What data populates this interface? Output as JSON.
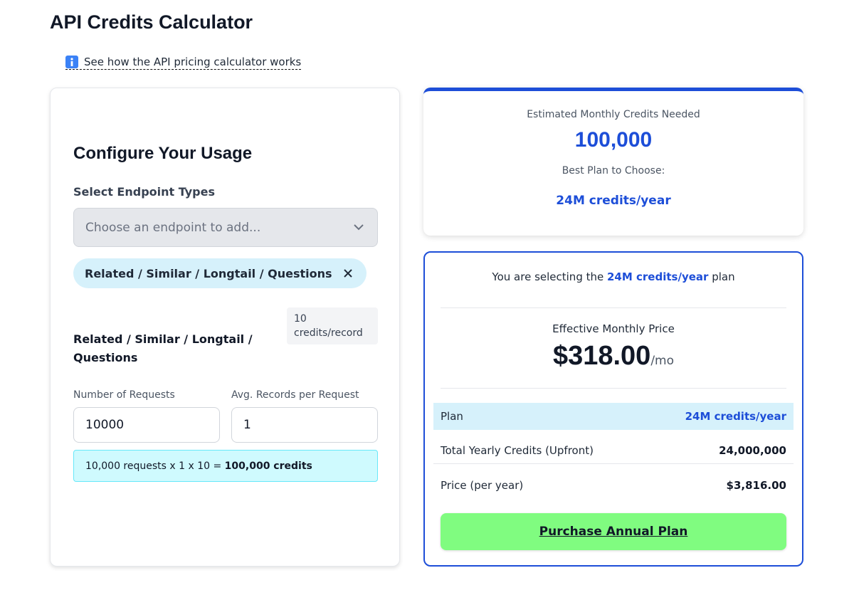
{
  "header": {
    "title": "API Credits Calculator",
    "help_link": "See how the API pricing calculator works"
  },
  "configure": {
    "title": "Configure Your Usage",
    "select_label": "Select Endpoint Types",
    "select_placeholder": "Choose an endpoint to add...",
    "chip": "Related / Similar / Longtail / Questions",
    "endpoint": {
      "name": "Related / Similar / Longtail / Questions",
      "badge_number": "10",
      "badge_unit": "credits/record",
      "requests_label": "Number of Requests",
      "records_label": "Avg. Records per Request",
      "requests_value": "10000",
      "records_value": "1",
      "formula": "10,000 requests x 1 x 10 = ",
      "formula_result": "100,000 credits"
    }
  },
  "estimate": {
    "label": "Estimated Monthly Credits Needed",
    "value": "100,000",
    "plan_label": "Best Plan to Choose:",
    "plan": "24M credits/year"
  },
  "summary": {
    "selecting_prefix": "You are selecting the ",
    "selecting_plan": "24M credits/year",
    "selecting_suffix": " plan",
    "price_label": "Effective Monthly Price",
    "price": "$318.00",
    "price_unit": "/mo",
    "rows": [
      [
        "Plan",
        "24M credits/year"
      ],
      [
        "Total Yearly Credits (Upfront)",
        "24,000,000"
      ],
      [
        "Price (per year)",
        "$3,816.00"
      ]
    ],
    "button": "Purchase Annual Plan"
  }
}
